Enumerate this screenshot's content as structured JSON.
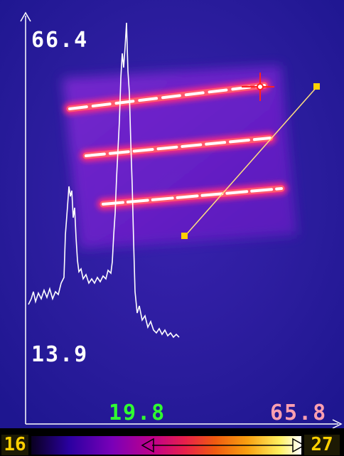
{
  "profile_readout": {
    "y_max": "66.4",
    "y_min": "13.9",
    "x_start": "19.8",
    "x_end": "65.8"
  },
  "color_scale": {
    "min": "16",
    "max": "27"
  },
  "colors": {
    "background": "#2b1ea0",
    "hot_stripe": "#ff3a70",
    "hot_core": "#ffffff",
    "profile_line": "#ffffff",
    "marker": "#ffd000",
    "cursor": "#ff2020"
  },
  "icons": {
    "measurement_cursor": "crosshair-icon",
    "line_endpoints": "square-handle-icon"
  }
}
